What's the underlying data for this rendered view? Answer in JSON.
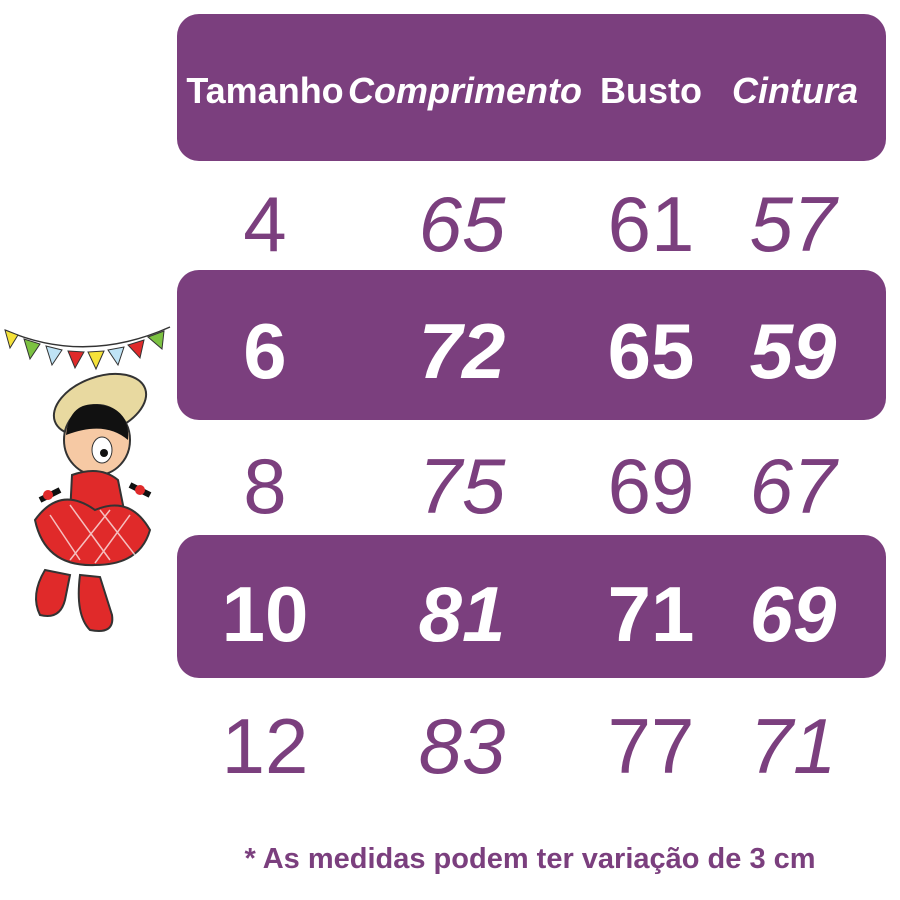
{
  "table": {
    "headers": [
      "Tamanho",
      "Comprimento",
      "Busto",
      "Cintura"
    ],
    "rows": [
      [
        "4",
        "65",
        "61",
        "57"
      ],
      [
        "6",
        "72",
        "65",
        "59"
      ],
      [
        "8",
        "75",
        "69",
        "67"
      ],
      [
        "10",
        "81",
        "71",
        "69"
      ],
      [
        "12",
        "83",
        "77",
        "71"
      ]
    ]
  },
  "footnote": "* As medidas podem ter variação de 3 cm",
  "colors": {
    "accent": "#7b3f7e",
    "text_on_accent": "#ffffff"
  },
  "illustration": "festa-junina-girl-cartoon"
}
